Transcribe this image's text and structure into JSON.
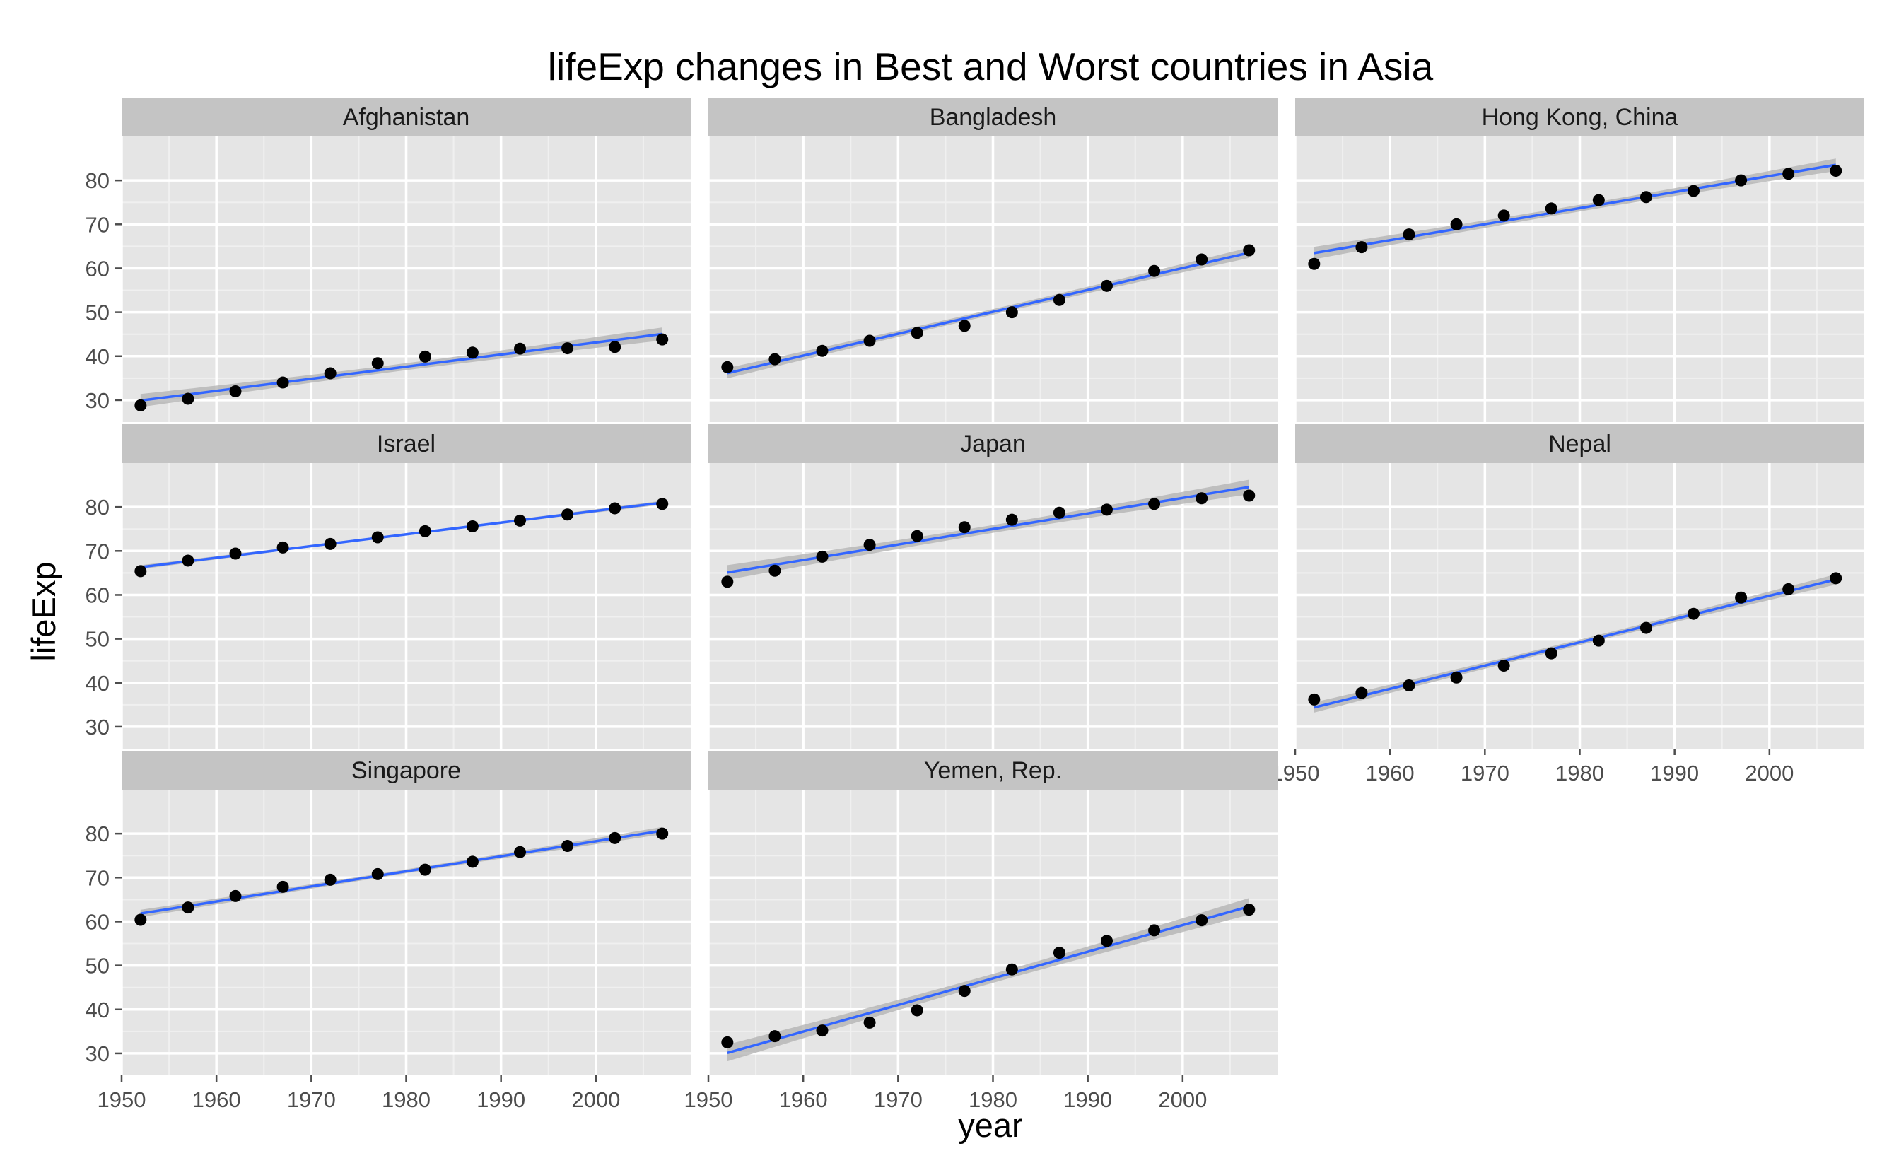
{
  "chart_data": {
    "type": "scatter",
    "title": "lifeExp changes in Best and Worst countries in Asia",
    "xlabel": "year",
    "ylabel": "lifeExp",
    "xlim": [
      1950,
      2010
    ],
    "ylim": [
      25,
      90
    ],
    "x_ticks": [
      1950,
      1960,
      1970,
      1980,
      1990,
      2000
    ],
    "y_ticks": [
      30,
      40,
      50,
      60,
      70,
      80
    ],
    "grid": true,
    "trendline": "linear fit with confidence band",
    "colors": {
      "panel_bg": "#e5e5e5",
      "strip_bg": "#c4c4c4",
      "grid_major": "#ffffff",
      "grid_minor": "#f0f0f0",
      "point": "#000000",
      "fit_line": "#3366ff",
      "fit_band": "#b0b0b0"
    },
    "x": [
      1952,
      1957,
      1962,
      1967,
      1972,
      1977,
      1982,
      1987,
      1992,
      1997,
      2002,
      2007
    ],
    "panels": [
      {
        "name": "Afghanistan",
        "values": [
          28.8,
          30.3,
          32.0,
          34.0,
          36.1,
          38.4,
          39.9,
          40.8,
          41.7,
          41.8,
          42.1,
          43.8
        ]
      },
      {
        "name": "Bangladesh",
        "values": [
          37.5,
          39.3,
          41.2,
          43.5,
          45.3,
          46.9,
          50.0,
          52.8,
          56.0,
          59.4,
          62.0,
          64.1
        ]
      },
      {
        "name": "Hong Kong, China",
        "values": [
          61.0,
          64.8,
          67.7,
          70.0,
          72.0,
          73.6,
          75.5,
          76.2,
          77.6,
          80.0,
          81.5,
          82.2
        ]
      },
      {
        "name": "Israel",
        "values": [
          65.4,
          67.8,
          69.4,
          70.8,
          71.6,
          73.1,
          74.5,
          75.6,
          76.9,
          78.3,
          79.7,
          80.7
        ]
      },
      {
        "name": "Japan",
        "values": [
          63.0,
          65.5,
          68.7,
          71.4,
          73.4,
          75.4,
          77.1,
          78.7,
          79.4,
          80.7,
          82.0,
          82.6
        ]
      },
      {
        "name": "Nepal",
        "values": [
          36.2,
          37.7,
          39.4,
          41.2,
          43.9,
          46.7,
          49.6,
          52.5,
          55.7,
          59.4,
          61.3,
          63.8
        ]
      },
      {
        "name": "Singapore",
        "values": [
          60.4,
          63.2,
          65.8,
          67.9,
          69.5,
          70.8,
          71.8,
          73.6,
          75.8,
          77.2,
          79.0,
          80.0
        ]
      },
      {
        "name": "Yemen, Rep.",
        "values": [
          32.5,
          33.9,
          35.2,
          37.0,
          39.8,
          44.2,
          49.1,
          52.9,
          55.6,
          58.0,
          60.3,
          62.7
        ]
      }
    ]
  }
}
